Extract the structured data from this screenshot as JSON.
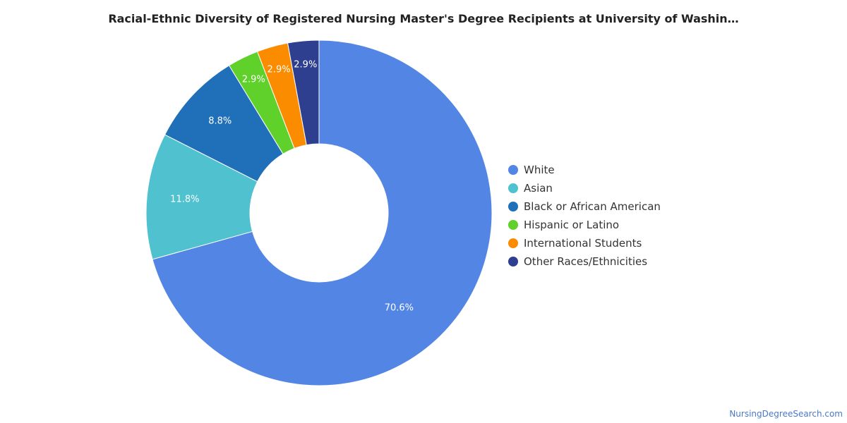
{
  "chart_data": {
    "type": "pie",
    "title": "Racial-Ethnic Diversity of Registered Nursing Master's Degree Recipients at University of Washin…",
    "categories": [
      "White",
      "Asian",
      "Black or African American",
      "Hispanic or Latino",
      "International Students",
      "Other Races/Ethnicities"
    ],
    "values": [
      70.6,
      11.8,
      8.8,
      2.9,
      2.9,
      2.9
    ],
    "data_labels": [
      "70.6%",
      "11.8%",
      "8.8%",
      "2.9%",
      "2.9%",
      "2.9%"
    ],
    "colors": [
      "#5386e4",
      "#4fc1cf",
      "#1f70b8",
      "#60d02a",
      "#fb8c00",
      "#2d3f8e"
    ],
    "donut": true,
    "legend_position": "right"
  },
  "watermark": "NursingDegreeSearch.com"
}
